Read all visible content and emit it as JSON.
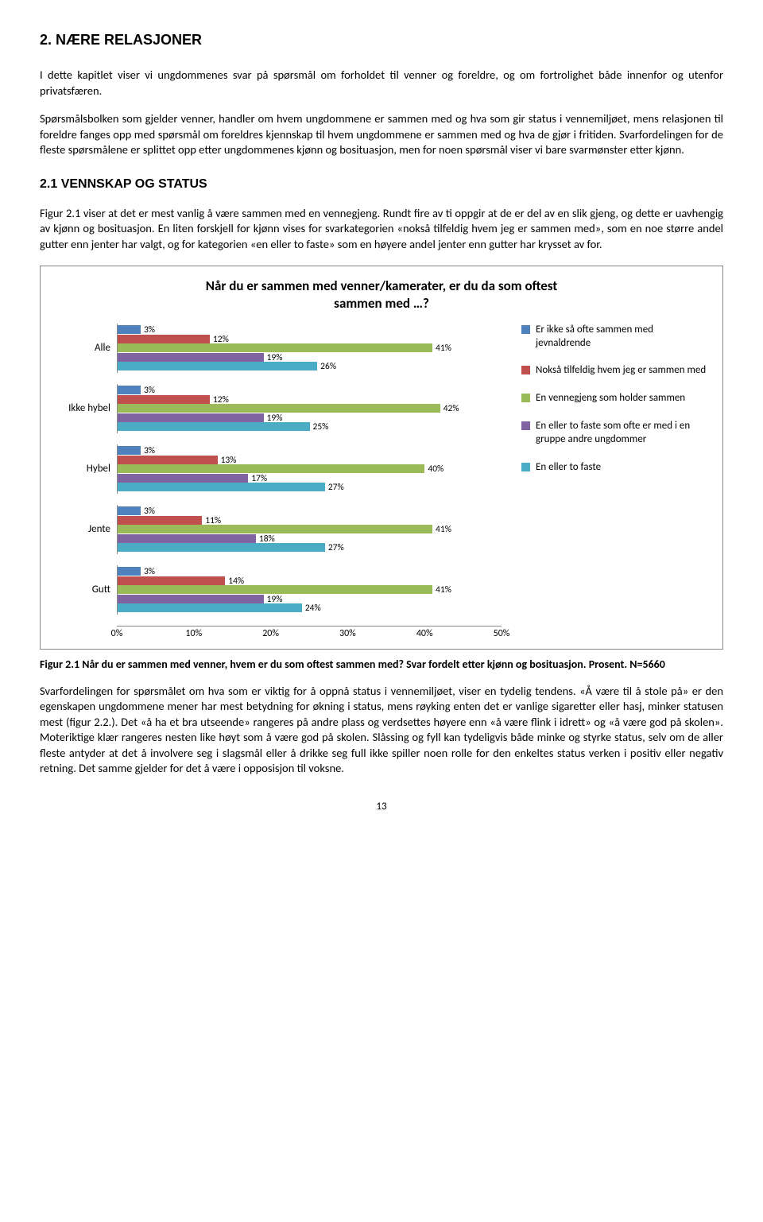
{
  "heading1": "2.    NÆRE RELASJONER",
  "para1": "I dette kapitlet viser vi ungdommenes svar på spørsmål om forholdet til venner og foreldre, og om fortrolighet både innenfor og utenfor privatsfæren.",
  "para2": "Spørsmålsbolken som gjelder venner, handler om hvem ungdommene er sammen med og hva som gir status i vennemiljøet, mens relasjonen til foreldre fanges opp med spørsmål om foreldres kjennskap til hvem ungdommene er sammen med og hva de gjør i fritiden. Svarfordelingen for de fleste spørsmålene er splittet opp etter ungdommenes kjønn og bosituasjon, men for noen spørsmål viser vi bare svarmønster etter kjønn.",
  "heading2": "2.1    VENNSKAP OG STATUS",
  "para3": "Figur 2.1 viser at det er mest vanlig å være sammen med en vennegjeng. Rundt fire av ti oppgir at de er del av en slik gjeng, og dette er uavhengig av kjønn og bosituasjon. En liten forskjell for kjønn vises for svarkategorien «nokså tilfeldig hvem jeg er sammen med», som en noe større andel gutter enn jenter har valgt, og for kategorien «en eller to faste» som en høyere andel jenter enn gutter har krysset av for.",
  "chart": {
    "title_l1": "Når du er sammen med venner/kamerater, er du da som oftest",
    "title_l2": "sammen med …?",
    "x_max": 50,
    "ticks": [
      0,
      10,
      20,
      30,
      40,
      50
    ],
    "series_colors": [
      "#4f81bd",
      "#c0504d",
      "#9bbb59",
      "#8064a2",
      "#4bacc6"
    ],
    "legend": [
      "Er ikke så ofte sammen med jevnaldrende",
      "Nokså tilfeldig hvem jeg er sammen med",
      "En vennegjeng som holder sammen",
      "En eller to faste som ofte er med i en gruppe andre ungdommer",
      "En eller to faste"
    ],
    "groups": [
      {
        "label": "Alle",
        "values": [
          3,
          12,
          41,
          19,
          26
        ]
      },
      {
        "label": "Ikke hybel",
        "values": [
          3,
          12,
          42,
          19,
          25
        ]
      },
      {
        "label": "Hybel",
        "values": [
          3,
          13,
          40,
          17,
          27
        ]
      },
      {
        "label": "Jente",
        "values": [
          3,
          11,
          41,
          18,
          27
        ]
      },
      {
        "label": "Gutt",
        "values": [
          3,
          14,
          41,
          19,
          24
        ]
      }
    ]
  },
  "caption": "Figur 2.1 Når du er sammen med venner, hvem er du som oftest sammen med? Svar fordelt etter kjønn og bosituasjon. Prosent.  N=5660",
  "para4": "Svarfordelingen for spørsmålet om hva som er viktig for å oppnå status i vennemiljøet, viser en tydelig tendens. «Å være til å stole på» er den egenskapen ungdommene mener har mest betydning for økning i status, mens røyking enten det er vanlige sigaretter eller hasj, minker statusen mest (figur 2.2.). Det «å ha et bra utseende» rangeres på andre plass og verdsettes høyere enn «å være flink i idrett» og «å være god på skolen». Moteriktige klær rangeres nesten like høyt som å være god på skolen. Slåssing og fyll kan tydeligvis både minke og styrke status, selv om de aller fleste antyder at det å involvere seg i slagsmål eller å drikke seg full ikke spiller noen rolle for den enkeltes status verken i positiv eller negativ retning. Det samme gjelder for det å være i opposisjon til voksne.",
  "page_num": "13"
}
